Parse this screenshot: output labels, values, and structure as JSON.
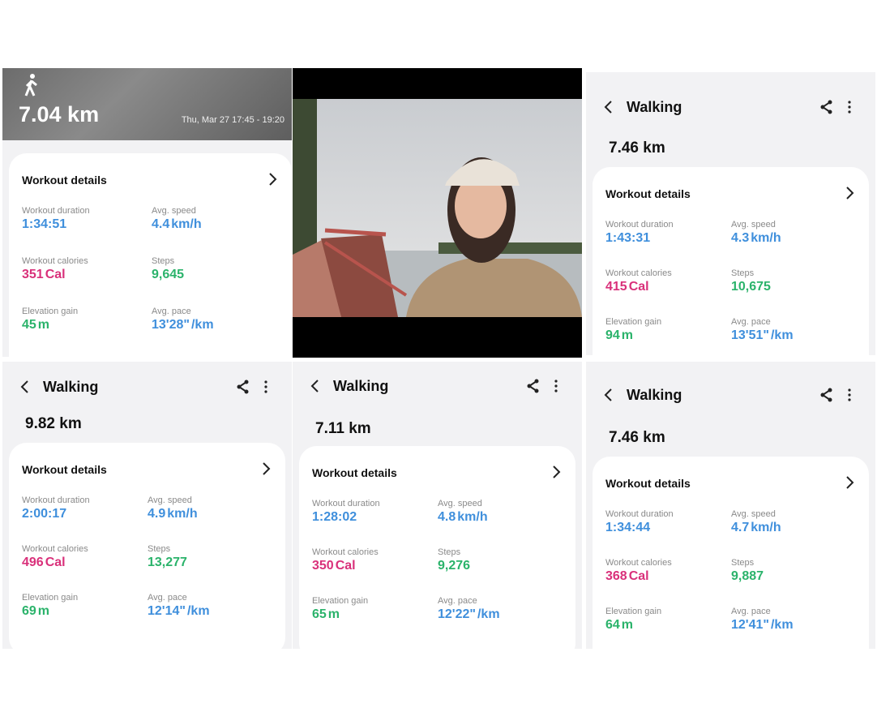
{
  "panels": [
    {
      "distance": "7.04 km",
      "date": "Thu, Mar 27 17:45 - 19:20",
      "card": {
        "title": "Workout details",
        "stats": [
          {
            "label": "Workout duration",
            "value": "1:34:51",
            "unit": ""
          },
          {
            "label": "Avg. speed",
            "value": "4.4",
            "unit": "km/h"
          },
          {
            "label": "Workout calories",
            "value": "351",
            "unit": "Cal"
          },
          {
            "label": "Steps",
            "value": "9,645",
            "unit": ""
          },
          {
            "label": "Elevation gain",
            "value": "45",
            "unit": "m"
          },
          {
            "label": "Avg. pace",
            "value": "13'28\"",
            "unit": "/km"
          }
        ]
      }
    },
    {
      "title": "Walking",
      "distance": "7.46 km",
      "card": {
        "title": "Workout details",
        "stats": [
          {
            "label": "Workout duration",
            "value": "1:43:31",
            "unit": ""
          },
          {
            "label": "Avg. speed",
            "value": "4.3",
            "unit": "km/h"
          },
          {
            "label": "Workout calories",
            "value": "415",
            "unit": "Cal"
          },
          {
            "label": "Steps",
            "value": "10,675",
            "unit": ""
          },
          {
            "label": "Elevation gain",
            "value": "94",
            "unit": "m"
          },
          {
            "label": "Avg. pace",
            "value": "13'51\"",
            "unit": "/km"
          }
        ]
      }
    },
    {
      "title": "Walking",
      "distance": "9.82 km",
      "card": {
        "title": "Workout details",
        "stats": [
          {
            "label": "Workout duration",
            "value": "2:00:17",
            "unit": ""
          },
          {
            "label": "Avg. speed",
            "value": "4.9",
            "unit": "km/h"
          },
          {
            "label": "Workout calories",
            "value": "496",
            "unit": "Cal"
          },
          {
            "label": "Steps",
            "value": "13,277",
            "unit": ""
          },
          {
            "label": "Elevation gain",
            "value": "69",
            "unit": "m"
          },
          {
            "label": "Avg. pace",
            "value": "12'14\"",
            "unit": "/km"
          }
        ]
      }
    },
    {
      "title": "Walking",
      "distance": "7.11 km",
      "card": {
        "title": "Workout details",
        "stats": [
          {
            "label": "Workout duration",
            "value": "1:28:02",
            "unit": ""
          },
          {
            "label": "Avg. speed",
            "value": "4.8",
            "unit": "km/h"
          },
          {
            "label": "Workout calories",
            "value": "350",
            "unit": "Cal"
          },
          {
            "label": "Steps",
            "value": "9,276",
            "unit": ""
          },
          {
            "label": "Elevation gain",
            "value": "65",
            "unit": "m"
          },
          {
            "label": "Avg. pace",
            "value": "12'22\"",
            "unit": "/km"
          }
        ]
      }
    },
    {
      "title": "Walking",
      "distance": "7.46 km",
      "card": {
        "title": "Workout details",
        "stats": [
          {
            "label": "Workout duration",
            "value": "1:34:44",
            "unit": ""
          },
          {
            "label": "Avg. speed",
            "value": "4.7",
            "unit": "km/h"
          },
          {
            "label": "Workout calories",
            "value": "368",
            "unit": "Cal"
          },
          {
            "label": "Steps",
            "value": "9,887",
            "unit": ""
          },
          {
            "label": "Elevation gain",
            "value": "64",
            "unit": "m"
          },
          {
            "label": "Avg. pace",
            "value": "12'41\"",
            "unit": "/km"
          }
        ]
      }
    }
  ]
}
